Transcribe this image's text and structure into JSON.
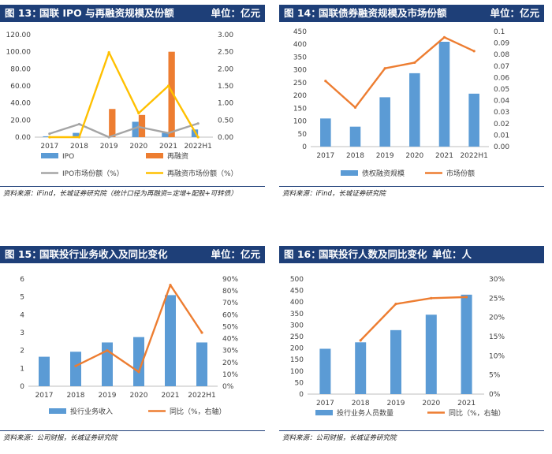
{
  "colors": {
    "blue": "#5b9bd5",
    "orange": "#ed7d31",
    "gray": "#a5a5a5",
    "yellow": "#ffc000",
    "header_bg": "#1e3f78"
  },
  "panels": [
    {
      "fig_label": "图 13：",
      "title": "国联 IPO 与再融资规模及份额",
      "unit": "单位：亿元",
      "source": "资料来源：iFind，长城证券研究院（统计口径为再融资=定增+配股+可转债）"
    },
    {
      "fig_label": "图 14：",
      "title": "国联债券融资规模及市场份额",
      "unit": "单位：亿元",
      "source": "资料来源：iFind，长城证券研究院"
    },
    {
      "fig_label": "图 15：",
      "title": "国联投行业务收入及同比变化",
      "unit": "单位：亿元",
      "source": "资料来源：公司财报，长城证券研究院"
    },
    {
      "fig_label": "图 16：",
      "title": "国联投行人数及同比变化",
      "unit": "单位：人",
      "source": "资料来源：公司财报，长城证券研究院"
    }
  ],
  "chart_data": [
    {
      "type": "bar",
      "categories": [
        "2017",
        "2018",
        "2019",
        "2020",
        "2021",
        "2022H1"
      ],
      "series": [
        {
          "name": "IPO",
          "kind": "bar",
          "axis": "left",
          "color": "#5b9bd5",
          "values": [
            1,
            5,
            0,
            18,
            5,
            9
          ]
        },
        {
          "name": "再融资",
          "kind": "bar",
          "axis": "left",
          "color": "#ed7d31",
          "values": [
            0,
            0,
            33,
            26,
            100,
            0
          ]
        },
        {
          "name": "IPO市场份额（%）",
          "kind": "line",
          "axis": "right",
          "color": "#a5a5a5",
          "values": [
            0.1,
            0.38,
            0.0,
            0.3,
            0.12,
            0.4
          ]
        },
        {
          "name": "再融资市场份额（%）",
          "kind": "line",
          "axis": "right",
          "color": "#ffc000",
          "values": [
            0.0,
            0.0,
            2.48,
            0.7,
            1.5,
            0.0
          ]
        }
      ],
      "left_axis": {
        "min": 0,
        "max": 120,
        "ticks": [
          "0.00",
          "20.00",
          "40.00",
          "60.00",
          "80.00",
          "100.00",
          "120.00"
        ]
      },
      "right_axis": {
        "min": 0,
        "max": 3,
        "ticks": [
          "0.00",
          "0.50",
          "1.00",
          "1.50",
          "2.00",
          "2.50",
          "3.00"
        ]
      },
      "legend_position": "bottom"
    },
    {
      "type": "bar",
      "categories": [
        "2017",
        "2018",
        "2019",
        "2020",
        "2021",
        "2022H1"
      ],
      "series": [
        {
          "name": "债权融资规模",
          "kind": "bar",
          "axis": "left",
          "color": "#5b9bd5",
          "values": [
            110,
            78,
            193,
            287,
            410,
            207
          ]
        },
        {
          "name": "市场份额",
          "kind": "line",
          "axis": "right",
          "color": "#ed7d31",
          "values": [
            0.057,
            0.034,
            0.068,
            0.073,
            0.095,
            0.083
          ]
        }
      ],
      "left_axis": {
        "min": 0,
        "max": 450,
        "ticks": [
          "0",
          "50",
          "100",
          "150",
          "200",
          "250",
          "300",
          "350",
          "400",
          "450"
        ]
      },
      "right_axis": {
        "min": 0,
        "max": 0.1,
        "ticks": [
          "0.00",
          "0.01",
          "0.02",
          "0.03",
          "0.04",
          "0.05",
          "0.06",
          "0.07",
          "0.08",
          "0.09",
          "0.1"
        ]
      },
      "legend_position": "bottom"
    },
    {
      "type": "bar",
      "categories": [
        "2017",
        "2018",
        "2019",
        "2020",
        "2021",
        "2022H1"
      ],
      "series": [
        {
          "name": "投行业务收入",
          "kind": "bar",
          "axis": "left",
          "color": "#5b9bd5",
          "values": [
            1.65,
            1.93,
            2.45,
            2.75,
            5.1,
            2.45
          ]
        },
        {
          "name": "同比（%，右轴）",
          "kind": "line",
          "axis": "right",
          "color": "#ed7d31",
          "values": [
            null,
            17,
            30,
            12,
            85,
            45
          ]
        }
      ],
      "left_axis": {
        "min": 0,
        "max": 6,
        "ticks": [
          "0",
          "1",
          "2",
          "3",
          "4",
          "5",
          "6"
        ]
      },
      "right_axis": {
        "min": 0,
        "max": 90,
        "ticks": [
          "0%",
          "10%",
          "20%",
          "30%",
          "40%",
          "50%",
          "60%",
          "70%",
          "80%",
          "90%"
        ]
      },
      "legend_position": "bottom"
    },
    {
      "type": "bar",
      "categories": [
        "2017",
        "2018",
        "2019",
        "2020",
        "2021"
      ],
      "series": [
        {
          "name": "投行业务人员数量",
          "kind": "bar",
          "axis": "left",
          "color": "#5b9bd5",
          "values": [
            197,
            225,
            278,
            345,
            432
          ]
        },
        {
          "name": "同比（%，右轴）",
          "kind": "line",
          "axis": "right",
          "color": "#ed7d31",
          "values": [
            null,
            14,
            23.5,
            25,
            25.3
          ]
        }
      ],
      "left_axis": {
        "min": 0,
        "max": 500,
        "ticks": [
          "0",
          "50",
          "100",
          "150",
          "200",
          "250",
          "300",
          "350",
          "400",
          "450",
          "500"
        ]
      },
      "right_axis": {
        "min": 0,
        "max": 30,
        "ticks": [
          "0%",
          "5%",
          "10%",
          "15%",
          "20%",
          "25%",
          "30%"
        ]
      },
      "legend_position": "bottom"
    }
  ]
}
